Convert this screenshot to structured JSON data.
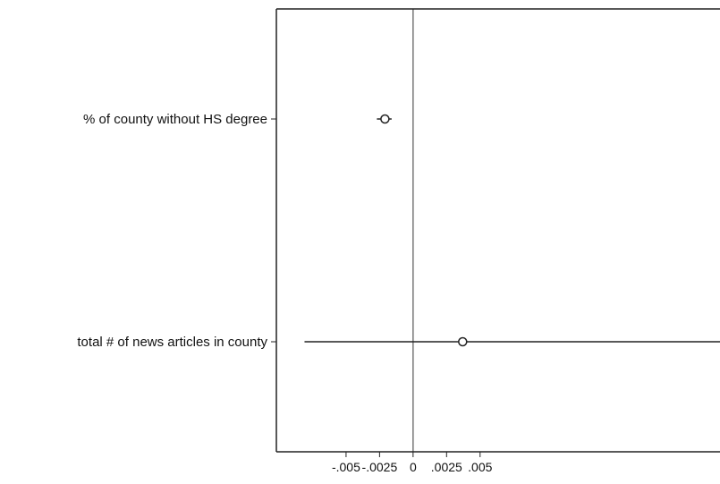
{
  "chart_data": {
    "type": "coefficient-plot",
    "orientation": "horizontal",
    "title": "",
    "xlabel": "",
    "ylabel": "",
    "grid": false,
    "xlim": [
      -0.0102,
      0.0229
    ],
    "xticks": [
      {
        "value": -0.005,
        "label": "-.005"
      },
      {
        "value": -0.0025,
        "label": "-.0025"
      },
      {
        "value": 0,
        "label": "0"
      },
      {
        "value": 0.0025,
        "label": ".0025"
      },
      {
        "value": 0.005,
        "label": ".005"
      }
    ],
    "reference_line_x": 0,
    "categories": [
      "% of county without HS degree",
      "total # of news articles in county"
    ],
    "points": [
      {
        "category": "% of county without HS degree",
        "estimate": -0.0021,
        "ci_low": -0.0027,
        "ci_high": -0.0016
      },
      {
        "category": "total # of news articles in county",
        "estimate": 0.0037,
        "ci_low": -0.0081,
        "ci_high": 0.0229
      }
    ],
    "colors": {
      "axis": "#222222",
      "marker": "#222222",
      "ref_line": "#777777"
    }
  }
}
